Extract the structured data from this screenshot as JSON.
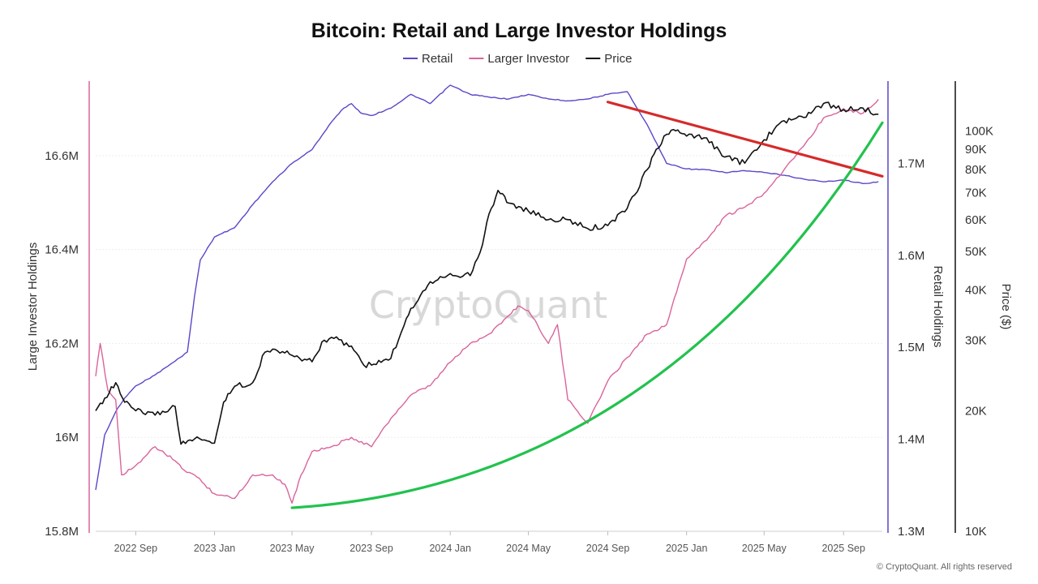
{
  "title": "Bitcoin: Retail and Large Investor Holdings",
  "watermark": "CryptoQuant",
  "copyright": "© CryptoQuant. All rights reserved",
  "colors": {
    "retail": "#5a47c8",
    "larger_investor": "#d9649b",
    "price": "#111111",
    "red_trend": "#d62a2a",
    "green_trend": "#22c24e",
    "left_axis": "#d9649b",
    "retail_axis": "#5a47c8",
    "price_axis": "#111111"
  },
  "legend": [
    {
      "label": "Retail",
      "color": "#5a47c8",
      "name": "retail"
    },
    {
      "label": "Larger Investor",
      "color": "#d9649b",
      "name": "larger-investor"
    },
    {
      "label": "Price",
      "color": "#111111",
      "name": "price"
    }
  ],
  "chart_data": {
    "type": "line",
    "title": "Bitcoin: Retail and Large Investor Holdings",
    "legend_position": "top-center",
    "grid": true,
    "x_ticks": [
      "2022 Sep",
      "2023 Jan",
      "2023 May",
      "2023 Sep",
      "2024 Jan",
      "2024 May",
      "2024 Sep",
      "2025 Jan",
      "2025 May",
      "2025 Sep"
    ],
    "x_range": [
      "2022-07-01",
      "2025-10-31"
    ],
    "axes": {
      "large_investor": {
        "label": "Large Investor Holdings",
        "ticks": [
          "15.8M",
          "16M",
          "16.2M",
          "16.4M",
          "16.6M"
        ],
        "tick_values": [
          15.8,
          16.0,
          16.2,
          16.4,
          16.6
        ],
        "range": [
          15.8,
          16.75
        ],
        "unit": "M BTC"
      },
      "retail": {
        "label": "Retail Holdings",
        "ticks": [
          "1.3M",
          "1.4M",
          "1.5M",
          "1.6M",
          "1.7M"
        ],
        "tick_values": [
          1.3,
          1.4,
          1.5,
          1.6,
          1.7
        ],
        "range": [
          1.3,
          1.785
        ],
        "unit": "M BTC"
      },
      "price": {
        "label": "Price ($)",
        "scale": "log",
        "ticks": [
          "10K",
          "20K",
          "30K",
          "40K",
          "50K",
          "60K",
          "70K",
          "80K",
          "90K",
          "100K"
        ],
        "tick_values": [
          10000,
          20000,
          30000,
          40000,
          50000,
          60000,
          70000,
          80000,
          90000,
          100000
        ],
        "range": [
          10000,
          130000
        ]
      }
    },
    "series": [
      {
        "name": "Retail",
        "axis": "retail",
        "color": "#5a47c8",
        "x": [
          "2022-07-01",
          "2022-07-15",
          "2022-08-01",
          "2022-08-15",
          "2022-09-01",
          "2022-10-01",
          "2022-11-01",
          "2022-11-20",
          "2022-12-01",
          "2022-12-10",
          "2023-01-01",
          "2023-02-01",
          "2023-03-01",
          "2023-04-01",
          "2023-05-01",
          "2023-06-01",
          "2023-07-01",
          "2023-07-20",
          "2023-08-01",
          "2023-08-15",
          "2023-09-01",
          "2023-10-01",
          "2023-11-01",
          "2023-12-01",
          "2024-01-01",
          "2024-02-01",
          "2024-03-01",
          "2024-04-01",
          "2024-05-01",
          "2024-06-01",
          "2024-07-01",
          "2024-08-01",
          "2024-09-01",
          "2024-10-01",
          "2024-11-01",
          "2024-12-01",
          "2025-01-01",
          "2025-02-01",
          "2025-03-01",
          "2025-04-01",
          "2025-05-01",
          "2025-06-01",
          "2025-07-01",
          "2025-08-01",
          "2025-09-01",
          "2025-10-01",
          "2025-10-25"
        ],
        "y": [
          1.345,
          1.405,
          1.43,
          1.445,
          1.458,
          1.47,
          1.485,
          1.495,
          1.555,
          1.595,
          1.62,
          1.63,
          1.655,
          1.68,
          1.7,
          1.715,
          1.745,
          1.76,
          1.765,
          1.755,
          1.752,
          1.76,
          1.775,
          1.765,
          1.785,
          1.775,
          1.772,
          1.77,
          1.775,
          1.77,
          1.768,
          1.77,
          1.775,
          1.778,
          1.742,
          1.7,
          1.694,
          1.693,
          1.69,
          1.692,
          1.69,
          1.687,
          1.683,
          1.68,
          1.682,
          1.678,
          1.68
        ]
      },
      {
        "name": "Larger Investor",
        "axis": "large_investor",
        "color": "#d9649b",
        "x": [
          "2022-07-01",
          "2022-07-08",
          "2022-07-20",
          "2022-08-01",
          "2022-08-10",
          "2022-09-01",
          "2022-10-01",
          "2022-11-01",
          "2022-11-15",
          "2022-12-01",
          "2023-01-01",
          "2023-02-01",
          "2023-03-01",
          "2023-04-01",
          "2023-04-20",
          "2023-05-01",
          "2023-05-15",
          "2023-06-01",
          "2023-07-01",
          "2023-08-01",
          "2023-09-01",
          "2023-10-01",
          "2023-11-01",
          "2023-12-01",
          "2024-01-01",
          "2024-02-01",
          "2024-03-01",
          "2024-04-01",
          "2024-04-15",
          "2024-05-01",
          "2024-05-15",
          "2024-06-01",
          "2024-06-15",
          "2024-07-01",
          "2024-08-01",
          "2024-09-01",
          "2024-10-01",
          "2024-11-01",
          "2024-12-01",
          "2025-01-01",
          "2025-02-01",
          "2025-03-01",
          "2025-04-01",
          "2025-05-01",
          "2025-06-01",
          "2025-07-01",
          "2025-08-01",
          "2025-09-01",
          "2025-10-01",
          "2025-10-25"
        ],
        "y": [
          16.13,
          16.2,
          16.1,
          16.08,
          15.92,
          15.94,
          15.98,
          15.95,
          15.93,
          15.92,
          15.88,
          15.87,
          15.92,
          15.92,
          15.9,
          15.86,
          15.92,
          15.97,
          15.98,
          16.0,
          15.98,
          16.04,
          16.09,
          16.11,
          16.16,
          16.2,
          16.22,
          16.26,
          16.28,
          16.27,
          16.24,
          16.2,
          16.24,
          16.08,
          16.03,
          16.12,
          16.17,
          16.22,
          16.24,
          16.38,
          16.42,
          16.47,
          16.49,
          16.52,
          16.57,
          16.62,
          16.68,
          16.7,
          16.69,
          16.72
        ]
      },
      {
        "name": "Price",
        "axis": "price",
        "color": "#111111",
        "x": [
          "2022-07-01",
          "2022-07-15",
          "2022-08-01",
          "2022-08-15",
          "2022-09-01",
          "2022-10-01",
          "2022-11-01",
          "2022-11-10",
          "2022-12-01",
          "2023-01-01",
          "2023-01-15",
          "2023-02-01",
          "2023-03-01",
          "2023-03-20",
          "2023-04-01",
          "2023-05-01",
          "2023-06-01",
          "2023-06-20",
          "2023-07-01",
          "2023-08-01",
          "2023-08-20",
          "2023-09-01",
          "2023-10-01",
          "2023-10-25",
          "2023-11-01",
          "2023-12-01",
          "2024-01-01",
          "2024-02-01",
          "2024-02-20",
          "2024-03-01",
          "2024-03-15",
          "2024-04-01",
          "2024-05-01",
          "2024-06-01",
          "2024-07-01",
          "2024-08-01",
          "2024-09-01",
          "2024-10-01",
          "2024-11-01",
          "2024-11-15",
          "2024-12-01",
          "2024-12-15",
          "2025-01-01",
          "2025-02-01",
          "2025-03-01",
          "2025-04-01",
          "2025-05-01",
          "2025-06-01",
          "2025-07-01",
          "2025-08-01",
          "2025-09-01",
          "2025-10-01",
          "2025-10-25"
        ],
        "y": [
          20000,
          21500,
          23500,
          21000,
          20000,
          19500,
          20500,
          16500,
          17000,
          16600,
          21000,
          23000,
          23500,
          28000,
          28500,
          27500,
          26500,
          30000,
          30500,
          29000,
          26000,
          26000,
          27000,
          34000,
          36000,
          42000,
          44000,
          43500,
          52000,
          62000,
          71000,
          66000,
          63000,
          60000,
          60000,
          57000,
          58000,
          64000,
          80000,
          90000,
          98000,
          100000,
          97000,
          96000,
          86000,
          83000,
          95000,
          106000,
          108000,
          117000,
          113000,
          114000,
          110000
        ]
      }
    ],
    "trend_lines": [
      {
        "name": "red-trend",
        "axis": "price",
        "color": "#d62a2a",
        "x": [
          "2024-09-01",
          "2025-10-31"
        ],
        "y": [
          118000,
          77000
        ]
      },
      {
        "name": "green-trend",
        "axis": "large_investor",
        "color": "#22c24e",
        "shape": "convex-curve",
        "x": [
          "2023-05-01",
          "2025-10-31"
        ],
        "y": [
          15.85,
          16.67
        ]
      }
    ]
  }
}
